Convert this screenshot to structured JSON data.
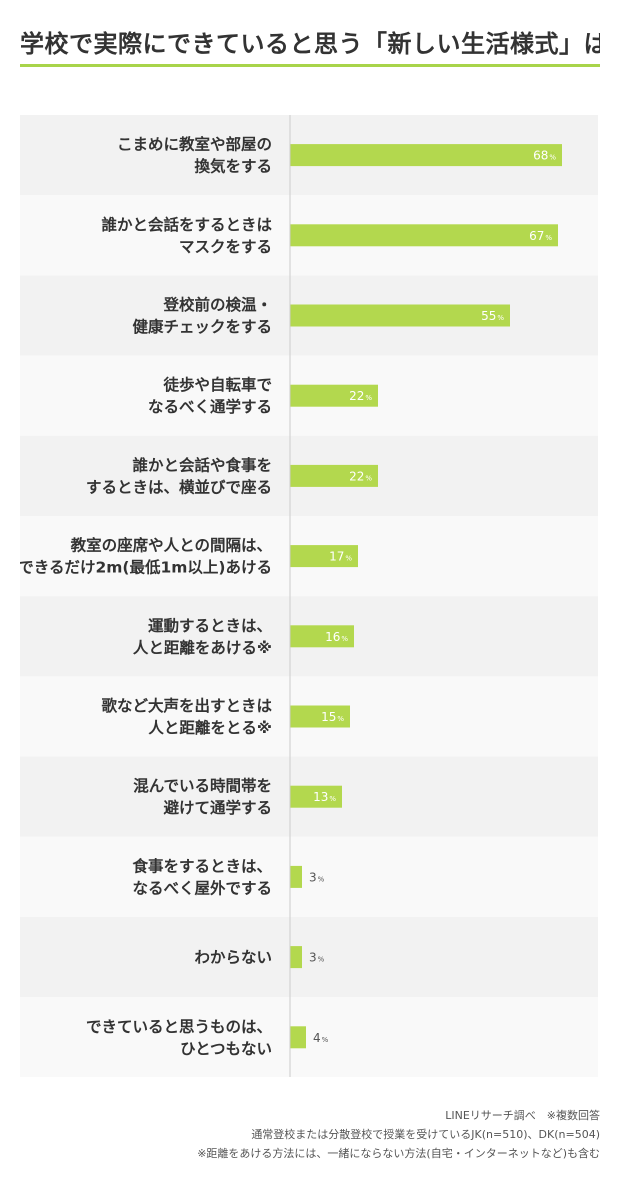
{
  "title": "学校で実際にできていると思う「新しい生活様式」は？",
  "colors": {
    "bar": "#b3d84e",
    "accent": "#a8d44a",
    "row_odd": "#f2f2f2",
    "row_even": "#f9f9f9"
  },
  "chart_data": {
    "type": "bar",
    "orientation": "horizontal",
    "unit": "%",
    "xlim": [
      0,
      100
    ],
    "grid": false,
    "categories": [
      [
        "こまめに教室や部屋の",
        "換気をする"
      ],
      [
        "誰かと会話をするときは",
        "マスクをする"
      ],
      [
        "登校前の検温・",
        "健康チェックをする"
      ],
      [
        "徒歩や自転車で",
        "なるべく通学する"
      ],
      [
        "誰かと会話や食事を",
        "するときは、横並びで座る"
      ],
      [
        "教室の座席や人との間隔は、",
        "できるだけ2m(最低1m以上)あける"
      ],
      [
        "運動するときは、",
        "人と距離をあける※"
      ],
      [
        "歌など大声を出すときは",
        "人と距離をとる※"
      ],
      [
        "混んでいる時間帯を",
        "避けて通学する"
      ],
      [
        "食事をするときは、",
        "なるべく屋外でする"
      ],
      [
        "わからない"
      ],
      [
        "できていると思うものは、",
        "ひとつもない"
      ]
    ],
    "values": [
      68,
      67,
      55,
      22,
      22,
      17,
      16,
      15,
      13,
      3,
      3,
      4
    ]
  },
  "notes": [
    "LINEリサーチ調べ　※複数回答",
    "通常登校または分散登校で授業を受けているJK(n=510)、DK(n=504)",
    "※距離をあける方法には、一緒にならない方法(自宅・インターネットなど)も含む"
  ]
}
